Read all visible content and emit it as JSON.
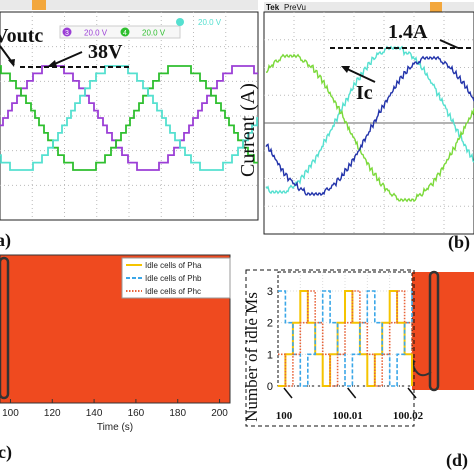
{
  "panels": {
    "a": {
      "label": "(a)",
      "legend": {
        "ch3": "3",
        "ch3_scale": "20.0 V",
        "ch4": "4",
        "ch4_scale": "20.0 V"
      },
      "annotations": {
        "voutc": "Voutc",
        "peak": "38V"
      }
    },
    "b": {
      "label": "(b)",
      "header": {
        "brand": "Tek",
        "mode": "PreVu"
      },
      "ylabel": "Current (A)",
      "annotations": {
        "ic": "Ic",
        "peak": "1.4A"
      }
    },
    "c": {
      "label": "(c)",
      "xlabel": "Time (s)",
      "legend": [
        "Idle cells of Pha",
        "Idle cells of Phb",
        "Idle cells of Phc"
      ]
    },
    "d": {
      "label": "(d)",
      "ylabel": "Number of idle Ms",
      "zoom_ticks": [
        "100",
        "100.01",
        "100.02"
      ]
    }
  },
  "chart_data": [
    {
      "type": "line",
      "title": "",
      "description_panel": "(a) three-phase multilevel staircase voltage waveforms",
      "series": [
        {
          "name": "3",
          "color": "#9b3fd6"
        },
        {
          "name": "4",
          "color": "#2fbf2f"
        },
        {
          "name": "",
          "color": "#55e0d0"
        }
      ],
      "peak_value": "38V",
      "levels": 7
    },
    {
      "type": "line",
      "title": "",
      "ylabel": "Current (A)",
      "series": [
        {
          "name": "Ic",
          "color": "#55e0d0"
        },
        {
          "name": "",
          "color": "#7bd93a"
        },
        {
          "name": "",
          "color": "#2233aa"
        }
      ],
      "peak_value": "1.4A"
    },
    {
      "type": "area",
      "xlabel": "Time (s)",
      "x_ticks": [
        100,
        120,
        140,
        160,
        180,
        200
      ],
      "xlim": [
        95,
        205
      ],
      "fill_color": "#ef4a1f",
      "series": [
        {
          "name": "Idle cells of Pha",
          "color": "#f5c400",
          "style": "solid"
        },
        {
          "name": "Idle cells of Phb",
          "color": "#3ba7e8",
          "style": "dashed"
        },
        {
          "name": "Idle cells of Phc",
          "color": "#e8643a",
          "style": "dotted"
        }
      ]
    },
    {
      "type": "line",
      "ylabel": "Number of idle Ms",
      "y_ticks": [
        0,
        1,
        2,
        3
      ],
      "ylim": [
        0,
        3.6
      ],
      "x_ticks": [
        "100",
        "100.01",
        "100.02"
      ],
      "series": [
        {
          "name": "Idle cells of Pha",
          "color": "#f5c400",
          "values": [
            0,
            1,
            2,
            3,
            2,
            1,
            0,
            1,
            2,
            3,
            2,
            1,
            0,
            1,
            2,
            3,
            2,
            1,
            0
          ]
        },
        {
          "name": "Idle cells of Phb",
          "color": "#3ba7e8",
          "values": [
            3,
            2,
            1,
            0,
            1,
            2,
            3,
            2,
            1,
            0,
            1,
            2,
            3,
            2,
            1,
            0,
            1,
            2,
            3
          ]
        },
        {
          "name": "Idle cells of Phc",
          "color": "#e8643a",
          "values": [
            1,
            0,
            1,
            2,
            3,
            2,
            1,
            0,
            1,
            2,
            3,
            2,
            1,
            0,
            1,
            2,
            3,
            2,
            1
          ]
        }
      ]
    }
  ]
}
